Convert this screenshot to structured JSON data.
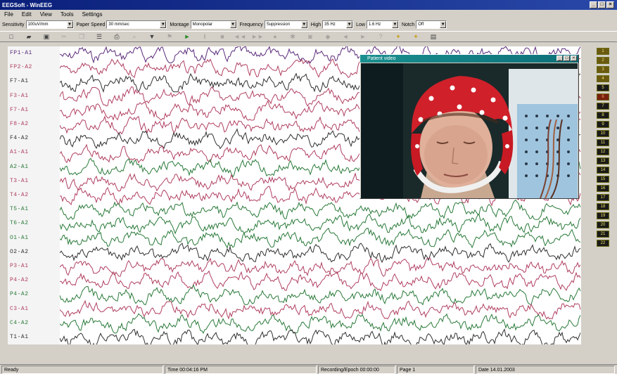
{
  "window": {
    "title": "EEGSoft - WinEEG"
  },
  "menu": [
    "File",
    "Edit",
    "View",
    "Tools",
    "Settings"
  ],
  "selectors": [
    {
      "label": "Sensitivity",
      "value": "100uV/mm"
    },
    {
      "label": "Paper Speed",
      "value": "30 mm/sec"
    },
    {
      "label": "Montage",
      "value": "Monopolar"
    },
    {
      "label": "Frequency",
      "value": "Suppression"
    },
    {
      "label": "High",
      "value": "35 Hz"
    },
    {
      "label": "Low",
      "value": "1.6 Hz"
    },
    {
      "label": "Notch",
      "value": "Off"
    }
  ],
  "channels": [
    {
      "label": "FP1-A1",
      "color": "#5a2a7a"
    },
    {
      "label": "FP2-A2",
      "color": "#b04060"
    },
    {
      "label": "F7-A1",
      "color": "#303030"
    },
    {
      "label": "F3-A1",
      "color": "#b04060"
    },
    {
      "label": "F7-A1",
      "color": "#b04060"
    },
    {
      "label": "F8-A2",
      "color": "#b04060"
    },
    {
      "label": "F4-A2",
      "color": "#303030"
    },
    {
      "label": "A1-A1",
      "color": "#b04060"
    },
    {
      "label": "A2-A1",
      "color": "#2a7a3a"
    },
    {
      "label": "T3-A1",
      "color": "#b04060"
    },
    {
      "label": "T4-A2",
      "color": "#b04060"
    },
    {
      "label": "T5-A1",
      "color": "#2a7a3a"
    },
    {
      "label": "T6-A2",
      "color": "#2a7a3a"
    },
    {
      "label": "O1-A1",
      "color": "#2a7a3a"
    },
    {
      "label": "O2-A2",
      "color": "#303030"
    },
    {
      "label": "P3-A1",
      "color": "#b04060"
    },
    {
      "label": "P4-A2",
      "color": "#b04060"
    },
    {
      "label": "P4-A2",
      "color": "#2a7a3a"
    },
    {
      "label": "C3-A1",
      "color": "#b04060"
    },
    {
      "label": "C4-A2",
      "color": "#2a7a3a"
    },
    {
      "label": "T1-A1",
      "color": "#303030"
    }
  ],
  "video_window": {
    "title": "Patient video"
  },
  "right_buttons": [
    "1",
    "2",
    "3",
    "4",
    "5",
    "6",
    "7",
    "8",
    "9",
    "10",
    "11",
    "12",
    "13",
    "14",
    "15",
    "16",
    "17",
    "18",
    "19",
    "20",
    "21",
    "22"
  ],
  "status": {
    "ready": "Ready",
    "time": "Time 00:04:16 PM",
    "recording": "Recording/Epoch 00:00:00",
    "page": "Page 1",
    "date": "Date 14.01.2003"
  }
}
